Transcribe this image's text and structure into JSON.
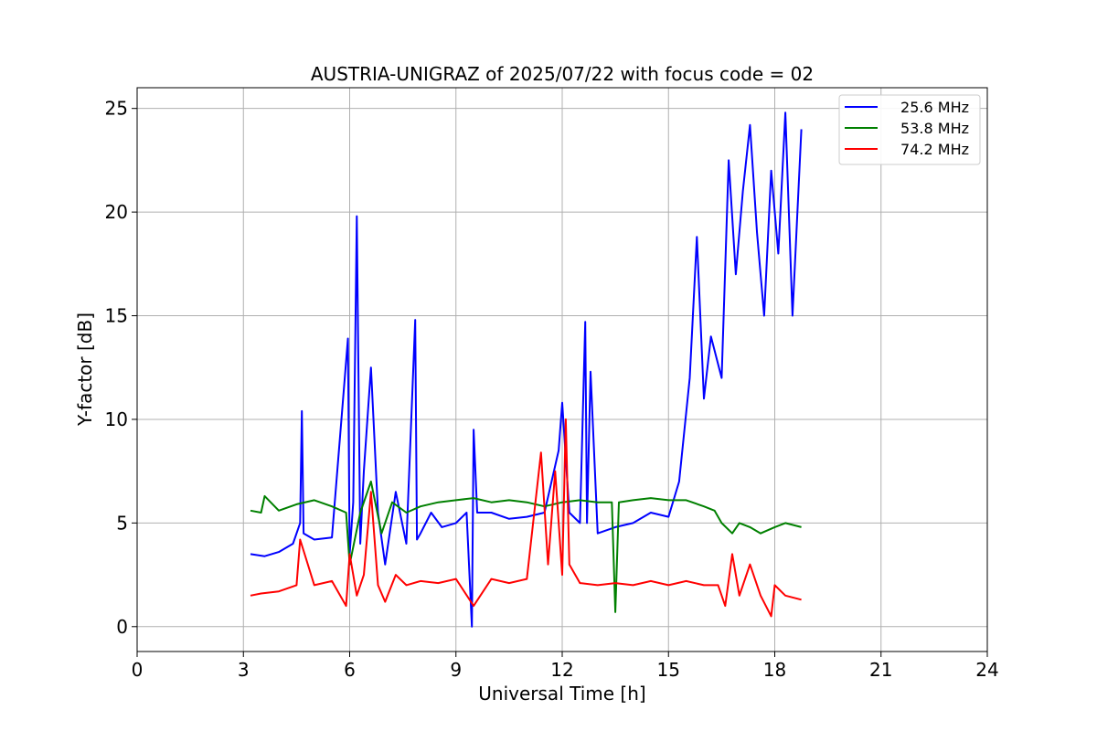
{
  "chart_data": {
    "type": "line",
    "title": "AUSTRIA-UNIGRAZ of 2025/07/22 with focus code = 02",
    "xlabel": "Universal Time [h]",
    "ylabel": "Y-factor [dB]",
    "xlim": [
      0,
      24
    ],
    "ylim": [
      -1.2,
      26
    ],
    "xticks": [
      0,
      3,
      6,
      9,
      12,
      15,
      18,
      21,
      24
    ],
    "yticks": [
      0,
      5,
      10,
      15,
      20,
      25
    ],
    "xtick_labels": [
      "0",
      "3",
      "6",
      "9",
      "12",
      "15",
      "18",
      "21",
      "24"
    ],
    "ytick_labels": [
      "0",
      "5",
      "10",
      "15",
      "20",
      "25"
    ],
    "grid": true,
    "legend_position": "top-right",
    "series": [
      {
        "name": "25.6 MHz",
        "color": "#0000ff",
        "x": [
          3.2,
          3.6,
          4.0,
          4.4,
          4.6,
          4.65,
          4.7,
          5.0,
          5.5,
          5.95,
          6.0,
          6.1,
          6.2,
          6.3,
          6.4,
          6.6,
          6.8,
          7.0,
          7.3,
          7.6,
          7.85,
          7.9,
          8.0,
          8.3,
          8.6,
          9.0,
          9.3,
          9.45,
          9.5,
          9.6,
          10.0,
          10.5,
          11.0,
          11.5,
          11.9,
          12.0,
          12.2,
          12.5,
          12.65,
          12.7,
          12.8,
          13.0,
          13.5,
          14.0,
          14.5,
          15.0,
          15.3,
          15.6,
          15.8,
          16.0,
          16.2,
          16.5,
          16.7,
          16.9,
          17.1,
          17.3,
          17.5,
          17.7,
          17.9,
          18.1,
          18.3,
          18.5,
          18.75
        ],
        "y": [
          3.5,
          3.4,
          3.6,
          4.0,
          5.0,
          10.4,
          4.5,
          4.2,
          4.3,
          13.9,
          3.5,
          6.0,
          19.8,
          4.0,
          7.5,
          12.5,
          5.5,
          3.0,
          6.5,
          4.0,
          14.8,
          4.2,
          4.5,
          5.5,
          4.8,
          5.0,
          5.5,
          0.0,
          9.5,
          5.5,
          5.5,
          5.2,
          5.3,
          5.5,
          8.5,
          10.8,
          5.5,
          5.0,
          14.7,
          5.0,
          12.3,
          4.5,
          4.8,
          5.0,
          5.5,
          5.3,
          7.0,
          12.0,
          18.8,
          11.0,
          14.0,
          12.0,
          22.5,
          17.0,
          21.0,
          24.2,
          19.0,
          15.0,
          22.0,
          18.0,
          24.8,
          15.0,
          24.0
        ]
      },
      {
        "name": "53.8 MHz",
        "color": "#008000",
        "x": [
          3.2,
          3.5,
          3.6,
          4.0,
          4.5,
          5.0,
          5.5,
          5.9,
          6.0,
          6.3,
          6.6,
          6.9,
          7.2,
          7.6,
          8.0,
          8.5,
          9.0,
          9.5,
          10.0,
          10.5,
          11.0,
          11.5,
          12.0,
          12.5,
          13.0,
          13.4,
          13.5,
          13.6,
          14.0,
          14.5,
          15.0,
          15.5,
          16.0,
          16.3,
          16.5,
          16.8,
          17.0,
          17.3,
          17.6,
          18.0,
          18.3,
          18.75
        ],
        "y": [
          5.6,
          5.5,
          6.3,
          5.6,
          5.9,
          6.1,
          5.8,
          5.5,
          3.0,
          5.5,
          7.0,
          4.5,
          6.0,
          5.5,
          5.8,
          6.0,
          6.1,
          6.2,
          6.0,
          6.1,
          6.0,
          5.8,
          6.0,
          6.1,
          6.0,
          6.0,
          0.7,
          6.0,
          6.1,
          6.2,
          6.1,
          6.1,
          5.8,
          5.6,
          5.0,
          4.5,
          5.0,
          4.8,
          4.5,
          4.8,
          5.0,
          4.8
        ]
      },
      {
        "name": "74.2 MHz",
        "color": "#ff0000",
        "x": [
          3.2,
          3.5,
          4.0,
          4.5,
          4.6,
          5.0,
          5.5,
          5.9,
          6.0,
          6.2,
          6.4,
          6.6,
          6.8,
          7.0,
          7.3,
          7.6,
          8.0,
          8.5,
          9.0,
          9.5,
          10.0,
          10.5,
          11.0,
          11.4,
          11.6,
          11.8,
          12.0,
          12.1,
          12.2,
          12.5,
          13.0,
          13.5,
          14.0,
          14.5,
          15.0,
          15.5,
          16.0,
          16.4,
          16.6,
          16.8,
          17.0,
          17.3,
          17.6,
          17.9,
          18.0,
          18.3,
          18.75
        ],
        "y": [
          1.5,
          1.6,
          1.7,
          2.0,
          4.2,
          2.0,
          2.2,
          1.0,
          3.5,
          1.5,
          2.5,
          6.5,
          2.0,
          1.2,
          2.5,
          2.0,
          2.2,
          2.1,
          2.3,
          1.0,
          2.3,
          2.1,
          2.3,
          8.4,
          3.0,
          7.5,
          2.5,
          10.0,
          3.0,
          2.1,
          2.0,
          2.1,
          2.0,
          2.2,
          2.0,
          2.2,
          2.0,
          2.0,
          1.0,
          3.5,
          1.5,
          3.0,
          1.5,
          0.5,
          2.0,
          1.5,
          1.3
        ]
      }
    ]
  }
}
